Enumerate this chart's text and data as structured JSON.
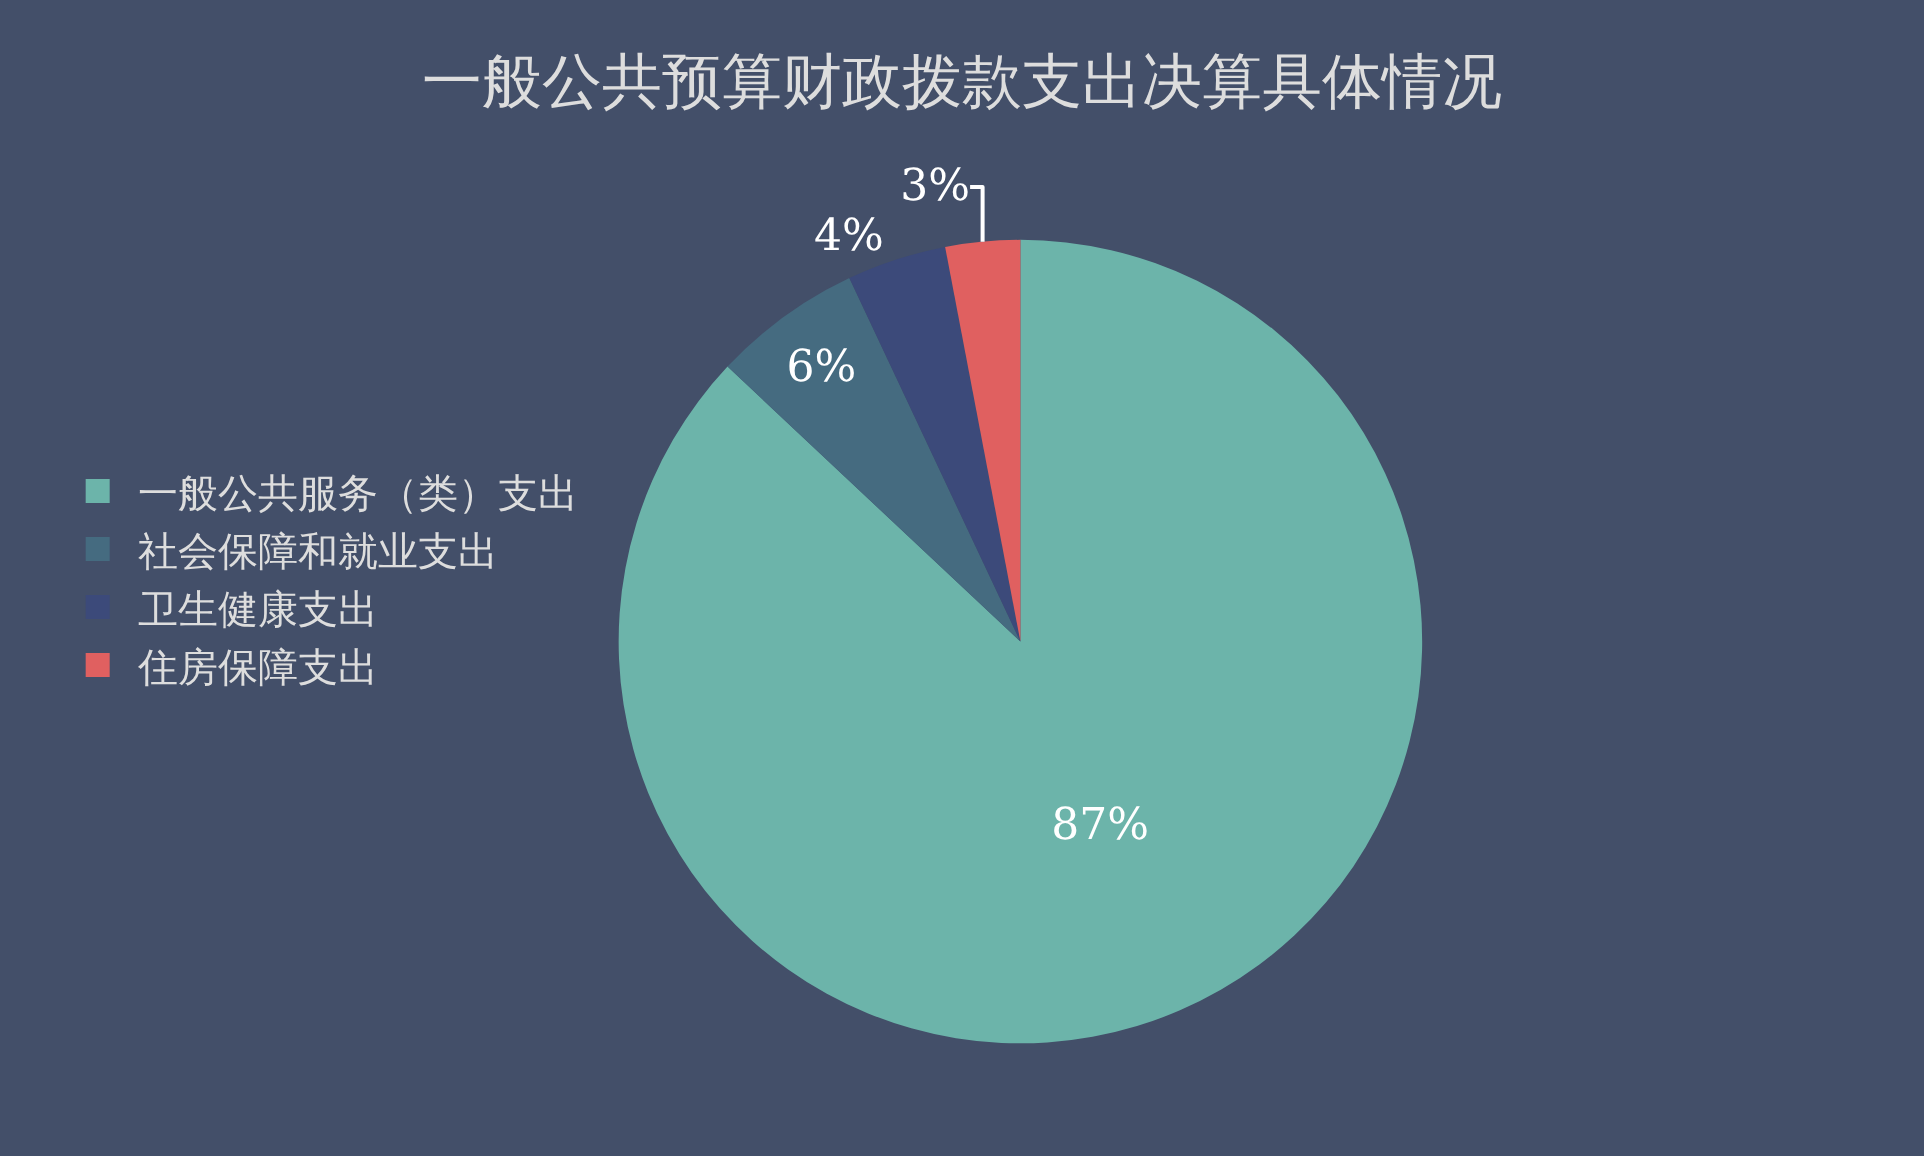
{
  "chart_data": {
    "type": "pie",
    "title": "一般公共预算财政拨款支出决算具体情况",
    "categories": [
      "一般公共服务（类）支出",
      "社会保障和就业支出",
      "卫生健康支出",
      "住房保障支出"
    ],
    "values": [
      87,
      6,
      4,
      3
    ],
    "colors": [
      "#6cb4aa",
      "#456b80",
      "#3c4a7a",
      "#e06060"
    ],
    "value_labels": [
      "87%",
      "6%",
      "4%",
      "3%"
    ],
    "legend": "left"
  }
}
